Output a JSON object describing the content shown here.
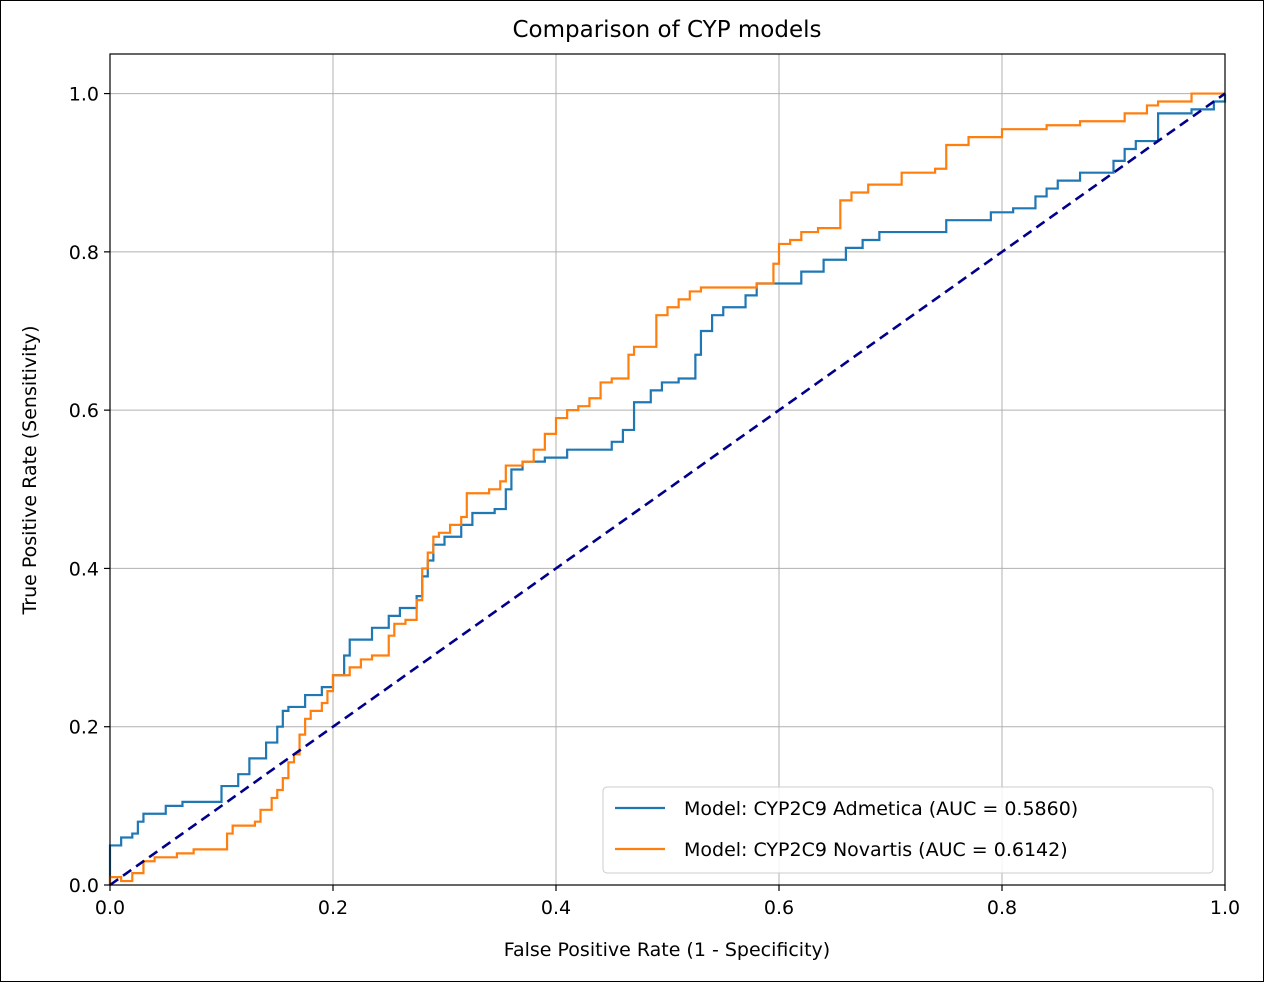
{
  "chart_data": {
    "type": "line",
    "title": "Comparison of CYP models",
    "xlabel": "False Positive Rate (1 - Specificity)",
    "ylabel": "True Positive Rate (Sensitivity)",
    "xlim": [
      0.0,
      1.0
    ],
    "ylim": [
      0.0,
      1.05
    ],
    "xticks": [
      "0.0",
      "0.2",
      "0.4",
      "0.6",
      "0.8",
      "1.0"
    ],
    "yticks": [
      "0.0",
      "0.2",
      "0.4",
      "0.6",
      "0.8",
      "1.0"
    ],
    "grid": true,
    "legend_position": "lower-right",
    "series": [
      {
        "name": "Model: CYP2C9 Admetica (AUC = 0.5860)",
        "color": "#1f77b4",
        "style": "solid",
        "step": true,
        "points": [
          [
            0.0,
            0.0
          ],
          [
            0.0,
            0.05
          ],
          [
            0.01,
            0.05
          ],
          [
            0.01,
            0.06
          ],
          [
            0.02,
            0.06
          ],
          [
            0.02,
            0.065
          ],
          [
            0.025,
            0.065
          ],
          [
            0.025,
            0.08
          ],
          [
            0.03,
            0.08
          ],
          [
            0.03,
            0.09
          ],
          [
            0.05,
            0.09
          ],
          [
            0.05,
            0.1
          ],
          [
            0.065,
            0.1
          ],
          [
            0.065,
            0.105
          ],
          [
            0.1,
            0.105
          ],
          [
            0.1,
            0.125
          ],
          [
            0.115,
            0.125
          ],
          [
            0.115,
            0.14
          ],
          [
            0.125,
            0.14
          ],
          [
            0.125,
            0.16
          ],
          [
            0.14,
            0.16
          ],
          [
            0.14,
            0.18
          ],
          [
            0.15,
            0.18
          ],
          [
            0.15,
            0.2
          ],
          [
            0.155,
            0.2
          ],
          [
            0.155,
            0.22
          ],
          [
            0.16,
            0.22
          ],
          [
            0.16,
            0.225
          ],
          [
            0.175,
            0.225
          ],
          [
            0.175,
            0.24
          ],
          [
            0.19,
            0.24
          ],
          [
            0.19,
            0.25
          ],
          [
            0.2,
            0.25
          ],
          [
            0.2,
            0.265
          ],
          [
            0.21,
            0.265
          ],
          [
            0.21,
            0.29
          ],
          [
            0.215,
            0.29
          ],
          [
            0.215,
            0.31
          ],
          [
            0.235,
            0.31
          ],
          [
            0.235,
            0.325
          ],
          [
            0.25,
            0.325
          ],
          [
            0.25,
            0.34
          ],
          [
            0.26,
            0.34
          ],
          [
            0.26,
            0.35
          ],
          [
            0.275,
            0.35
          ],
          [
            0.275,
            0.365
          ],
          [
            0.28,
            0.365
          ],
          [
            0.28,
            0.39
          ],
          [
            0.285,
            0.39
          ],
          [
            0.285,
            0.41
          ],
          [
            0.29,
            0.41
          ],
          [
            0.29,
            0.43
          ],
          [
            0.3,
            0.43
          ],
          [
            0.3,
            0.44
          ],
          [
            0.315,
            0.44
          ],
          [
            0.315,
            0.455
          ],
          [
            0.325,
            0.455
          ],
          [
            0.325,
            0.47
          ],
          [
            0.345,
            0.47
          ],
          [
            0.345,
            0.475
          ],
          [
            0.355,
            0.475
          ],
          [
            0.355,
            0.5
          ],
          [
            0.36,
            0.5
          ],
          [
            0.36,
            0.525
          ],
          [
            0.37,
            0.525
          ],
          [
            0.37,
            0.535
          ],
          [
            0.39,
            0.535
          ],
          [
            0.39,
            0.54
          ],
          [
            0.41,
            0.54
          ],
          [
            0.41,
            0.55
          ],
          [
            0.45,
            0.55
          ],
          [
            0.45,
            0.56
          ],
          [
            0.46,
            0.56
          ],
          [
            0.46,
            0.575
          ],
          [
            0.47,
            0.575
          ],
          [
            0.47,
            0.61
          ],
          [
            0.485,
            0.61
          ],
          [
            0.485,
            0.625
          ],
          [
            0.495,
            0.625
          ],
          [
            0.495,
            0.635
          ],
          [
            0.51,
            0.635
          ],
          [
            0.51,
            0.64
          ],
          [
            0.525,
            0.64
          ],
          [
            0.525,
            0.67
          ],
          [
            0.53,
            0.67
          ],
          [
            0.53,
            0.7
          ],
          [
            0.54,
            0.7
          ],
          [
            0.54,
            0.72
          ],
          [
            0.55,
            0.72
          ],
          [
            0.55,
            0.73
          ],
          [
            0.57,
            0.73
          ],
          [
            0.57,
            0.745
          ],
          [
            0.58,
            0.745
          ],
          [
            0.58,
            0.76
          ],
          [
            0.62,
            0.76
          ],
          [
            0.62,
            0.775
          ],
          [
            0.64,
            0.775
          ],
          [
            0.64,
            0.79
          ],
          [
            0.66,
            0.79
          ],
          [
            0.66,
            0.805
          ],
          [
            0.675,
            0.805
          ],
          [
            0.675,
            0.815
          ],
          [
            0.69,
            0.815
          ],
          [
            0.69,
            0.825
          ],
          [
            0.75,
            0.825
          ],
          [
            0.75,
            0.84
          ],
          [
            0.79,
            0.84
          ],
          [
            0.79,
            0.85
          ],
          [
            0.81,
            0.85
          ],
          [
            0.81,
            0.855
          ],
          [
            0.83,
            0.855
          ],
          [
            0.83,
            0.87
          ],
          [
            0.84,
            0.87
          ],
          [
            0.84,
            0.88
          ],
          [
            0.85,
            0.88
          ],
          [
            0.85,
            0.89
          ],
          [
            0.87,
            0.89
          ],
          [
            0.87,
            0.9
          ],
          [
            0.9,
            0.9
          ],
          [
            0.9,
            0.915
          ],
          [
            0.91,
            0.915
          ],
          [
            0.91,
            0.93
          ],
          [
            0.92,
            0.93
          ],
          [
            0.92,
            0.94
          ],
          [
            0.94,
            0.94
          ],
          [
            0.94,
            0.975
          ],
          [
            0.97,
            0.975
          ],
          [
            0.97,
            0.98
          ],
          [
            0.99,
            0.98
          ],
          [
            0.99,
            0.99
          ],
          [
            1.0,
            0.99
          ],
          [
            1.0,
            1.0
          ]
        ]
      },
      {
        "name": "Model: CYP2C9 Novartis (AUC = 0.6142)",
        "color": "#ff7f0e",
        "style": "solid",
        "step": true,
        "points": [
          [
            0.0,
            0.0
          ],
          [
            0.0,
            0.01
          ],
          [
            0.01,
            0.01
          ],
          [
            0.01,
            0.005
          ],
          [
            0.02,
            0.005
          ],
          [
            0.02,
            0.015
          ],
          [
            0.03,
            0.015
          ],
          [
            0.03,
            0.03
          ],
          [
            0.04,
            0.03
          ],
          [
            0.04,
            0.035
          ],
          [
            0.06,
            0.035
          ],
          [
            0.06,
            0.04
          ],
          [
            0.075,
            0.04
          ],
          [
            0.075,
            0.045
          ],
          [
            0.105,
            0.045
          ],
          [
            0.105,
            0.065
          ],
          [
            0.11,
            0.065
          ],
          [
            0.11,
            0.075
          ],
          [
            0.13,
            0.075
          ],
          [
            0.13,
            0.08
          ],
          [
            0.135,
            0.08
          ],
          [
            0.135,
            0.095
          ],
          [
            0.145,
            0.095
          ],
          [
            0.145,
            0.11
          ],
          [
            0.15,
            0.11
          ],
          [
            0.15,
            0.12
          ],
          [
            0.155,
            0.12
          ],
          [
            0.155,
            0.135
          ],
          [
            0.16,
            0.135
          ],
          [
            0.16,
            0.155
          ],
          [
            0.165,
            0.155
          ],
          [
            0.165,
            0.165
          ],
          [
            0.17,
            0.165
          ],
          [
            0.17,
            0.19
          ],
          [
            0.175,
            0.19
          ],
          [
            0.175,
            0.21
          ],
          [
            0.18,
            0.21
          ],
          [
            0.18,
            0.22
          ],
          [
            0.19,
            0.22
          ],
          [
            0.19,
            0.23
          ],
          [
            0.195,
            0.23
          ],
          [
            0.195,
            0.245
          ],
          [
            0.2,
            0.245
          ],
          [
            0.2,
            0.265
          ],
          [
            0.215,
            0.265
          ],
          [
            0.215,
            0.275
          ],
          [
            0.225,
            0.275
          ],
          [
            0.225,
            0.285
          ],
          [
            0.235,
            0.285
          ],
          [
            0.235,
            0.29
          ],
          [
            0.25,
            0.29
          ],
          [
            0.25,
            0.315
          ],
          [
            0.255,
            0.315
          ],
          [
            0.255,
            0.33
          ],
          [
            0.265,
            0.33
          ],
          [
            0.265,
            0.335
          ],
          [
            0.275,
            0.335
          ],
          [
            0.275,
            0.36
          ],
          [
            0.28,
            0.36
          ],
          [
            0.28,
            0.4
          ],
          [
            0.285,
            0.4
          ],
          [
            0.285,
            0.42
          ],
          [
            0.29,
            0.42
          ],
          [
            0.29,
            0.44
          ],
          [
            0.295,
            0.44
          ],
          [
            0.295,
            0.445
          ],
          [
            0.305,
            0.445
          ],
          [
            0.305,
            0.455
          ],
          [
            0.315,
            0.455
          ],
          [
            0.315,
            0.465
          ],
          [
            0.32,
            0.465
          ],
          [
            0.32,
            0.495
          ],
          [
            0.34,
            0.495
          ],
          [
            0.34,
            0.5
          ],
          [
            0.35,
            0.5
          ],
          [
            0.35,
            0.51
          ],
          [
            0.355,
            0.51
          ],
          [
            0.355,
            0.53
          ],
          [
            0.37,
            0.53
          ],
          [
            0.37,
            0.535
          ],
          [
            0.38,
            0.535
          ],
          [
            0.38,
            0.55
          ],
          [
            0.39,
            0.55
          ],
          [
            0.39,
            0.57
          ],
          [
            0.4,
            0.57
          ],
          [
            0.4,
            0.59
          ],
          [
            0.41,
            0.59
          ],
          [
            0.41,
            0.6
          ],
          [
            0.42,
            0.6
          ],
          [
            0.42,
            0.605
          ],
          [
            0.43,
            0.605
          ],
          [
            0.43,
            0.615
          ],
          [
            0.44,
            0.615
          ],
          [
            0.44,
            0.635
          ],
          [
            0.45,
            0.635
          ],
          [
            0.45,
            0.64
          ],
          [
            0.465,
            0.64
          ],
          [
            0.465,
            0.67
          ],
          [
            0.47,
            0.67
          ],
          [
            0.47,
            0.68
          ],
          [
            0.49,
            0.68
          ],
          [
            0.49,
            0.72
          ],
          [
            0.5,
            0.72
          ],
          [
            0.5,
            0.73
          ],
          [
            0.51,
            0.73
          ],
          [
            0.51,
            0.74
          ],
          [
            0.52,
            0.74
          ],
          [
            0.52,
            0.75
          ],
          [
            0.53,
            0.75
          ],
          [
            0.53,
            0.755
          ],
          [
            0.58,
            0.755
          ],
          [
            0.58,
            0.76
          ],
          [
            0.595,
            0.76
          ],
          [
            0.595,
            0.785
          ],
          [
            0.6,
            0.785
          ],
          [
            0.6,
            0.81
          ],
          [
            0.61,
            0.81
          ],
          [
            0.61,
            0.815
          ],
          [
            0.62,
            0.815
          ],
          [
            0.62,
            0.825
          ],
          [
            0.635,
            0.825
          ],
          [
            0.635,
            0.83
          ],
          [
            0.655,
            0.83
          ],
          [
            0.655,
            0.865
          ],
          [
            0.665,
            0.865
          ],
          [
            0.665,
            0.875
          ],
          [
            0.68,
            0.875
          ],
          [
            0.68,
            0.885
          ],
          [
            0.71,
            0.885
          ],
          [
            0.71,
            0.9
          ],
          [
            0.74,
            0.9
          ],
          [
            0.74,
            0.905
          ],
          [
            0.75,
            0.905
          ],
          [
            0.75,
            0.935
          ],
          [
            0.77,
            0.935
          ],
          [
            0.77,
            0.945
          ],
          [
            0.8,
            0.945
          ],
          [
            0.8,
            0.955
          ],
          [
            0.84,
            0.955
          ],
          [
            0.84,
            0.96
          ],
          [
            0.87,
            0.96
          ],
          [
            0.87,
            0.965
          ],
          [
            0.91,
            0.965
          ],
          [
            0.91,
            0.975
          ],
          [
            0.93,
            0.975
          ],
          [
            0.93,
            0.985
          ],
          [
            0.94,
            0.985
          ],
          [
            0.94,
            0.99
          ],
          [
            0.97,
            0.99
          ],
          [
            0.97,
            1.0
          ],
          [
            1.0,
            1.0
          ]
        ]
      },
      {
        "name": "",
        "color": "#00008b",
        "style": "dashed",
        "step": false,
        "points": [
          [
            0.0,
            0.0
          ],
          [
            1.0,
            1.0
          ]
        ]
      }
    ]
  }
}
